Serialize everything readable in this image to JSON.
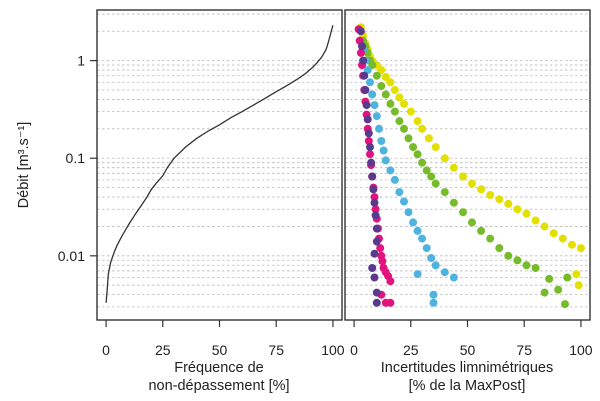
{
  "chart_data": [
    {
      "type": "line",
      "panel": "left",
      "ylabel": "Débit [m³.s⁻¹]",
      "xlabel": [
        "Fréquence de",
        "non-dépassement [%]"
      ],
      "x_ticks": [
        0,
        25,
        50,
        75,
        100
      ],
      "y_ticks": [
        0.01,
        0.1,
        1
      ],
      "y_tick_labels": [
        "0.01",
        "0.1",
        "1"
      ],
      "xlim": [
        -4,
        104
      ],
      "ylim": [
        0.0022,
        3.3
      ],
      "y_scale": "log",
      "grid": "horizontal dotted at 1-9 × each decade",
      "line_color": "#333333",
      "series": [
        {
          "x": [
            0,
            0.5,
            1,
            2,
            3,
            4,
            5,
            7,
            10,
            13,
            16,
            18,
            20,
            22,
            25,
            27,
            30,
            35,
            40,
            45,
            50,
            55,
            60,
            65,
            70,
            75,
            80,
            85,
            88,
            91,
            93,
            95,
            97,
            98,
            99,
            100
          ],
          "y": [
            0.0033,
            0.0045,
            0.0065,
            0.0085,
            0.01,
            0.0115,
            0.013,
            0.016,
            0.021,
            0.027,
            0.034,
            0.04,
            0.048,
            0.055,
            0.066,
            0.08,
            0.1,
            0.13,
            0.16,
            0.19,
            0.22,
            0.26,
            0.3,
            0.35,
            0.41,
            0.48,
            0.56,
            0.66,
            0.74,
            0.85,
            0.95,
            1.08,
            1.3,
            1.55,
            1.9,
            2.3
          ]
        }
      ]
    },
    {
      "type": "scatter",
      "panel": "right",
      "xlabel": [
        "Incertitudes limnimétriques",
        "[% de la MaxPost]"
      ],
      "x_ticks": [
        0,
        25,
        50,
        75,
        100
      ],
      "xlim": [
        -4,
        104
      ],
      "ylim": [
        0.0022,
        3.3
      ],
      "y_scale": "log",
      "series": [
        {
          "color": "#e3e000",
          "points": [
            [
              3,
              2.2
            ],
            [
              4,
              1.8
            ],
            [
              5,
              1.5
            ],
            [
              6,
              1.3
            ],
            [
              7,
              1.1
            ],
            [
              8,
              1.0
            ],
            [
              10,
              0.9
            ],
            [
              12,
              0.8
            ],
            [
              14,
              0.68
            ],
            [
              16,
              0.6
            ],
            [
              18,
              0.5
            ],
            [
              20,
              0.42
            ],
            [
              22,
              0.36
            ],
            [
              25,
              0.3
            ],
            [
              28,
              0.24
            ],
            [
              30,
              0.2
            ],
            [
              33,
              0.16
            ],
            [
              36,
              0.13
            ],
            [
              40,
              0.1
            ],
            [
              44,
              0.08
            ],
            [
              48,
              0.065
            ],
            [
              52,
              0.055
            ],
            [
              56,
              0.048
            ],
            [
              60,
              0.042
            ],
            [
              64,
              0.038
            ],
            [
              68,
              0.034
            ],
            [
              72,
              0.03
            ],
            [
              76,
              0.027
            ],
            [
              80,
              0.023
            ],
            [
              84,
              0.02
            ],
            [
              88,
              0.017
            ],
            [
              92,
              0.015
            ],
            [
              96,
              0.013
            ],
            [
              100,
              0.012
            ],
            [
              98,
              0.0065
            ],
            [
              99,
              0.005
            ]
          ]
        },
        {
          "color": "#76bb2a",
          "points": [
            [
              4,
              1.6
            ],
            [
              5,
              1.4
            ],
            [
              6,
              1.2
            ],
            [
              7,
              1.0
            ],
            [
              8,
              0.9
            ],
            [
              10,
              0.7
            ],
            [
              12,
              0.55
            ],
            [
              14,
              0.45
            ],
            [
              16,
              0.36
            ],
            [
              18,
              0.3
            ],
            [
              20,
              0.24
            ],
            [
              22,
              0.2
            ],
            [
              24,
              0.16
            ],
            [
              26,
              0.13
            ],
            [
              28,
              0.11
            ],
            [
              30,
              0.09
            ],
            [
              32,
              0.075
            ],
            [
              34,
              0.065
            ],
            [
              36,
              0.055
            ],
            [
              40,
              0.045
            ],
            [
              44,
              0.035
            ],
            [
              48,
              0.028
            ],
            [
              52,
              0.022
            ],
            [
              56,
              0.018
            ],
            [
              60,
              0.015
            ],
            [
              64,
              0.012
            ],
            [
              68,
              0.01
            ],
            [
              72,
              0.009
            ],
            [
              76,
              0.008
            ],
            [
              80,
              0.0075
            ],
            [
              84,
              0.0042
            ],
            [
              90,
              0.0045
            ],
            [
              93,
              0.0032
            ],
            [
              86,
              0.0058
            ],
            [
              94,
              0.006
            ]
          ]
        },
        {
          "color": "#4fb3e0",
          "points": [
            [
              4,
              1.3
            ],
            [
              5,
              1.0
            ],
            [
              6,
              0.8
            ],
            [
              7,
              0.6
            ],
            [
              8,
              0.45
            ],
            [
              9,
              0.35
            ],
            [
              10,
              0.27
            ],
            [
              11,
              0.2
            ],
            [
              12,
              0.15
            ],
            [
              13,
              0.12
            ],
            [
              14,
              0.095
            ],
            [
              16,
              0.075
            ],
            [
              18,
              0.06
            ],
            [
              20,
              0.045
            ],
            [
              22,
              0.036
            ],
            [
              24,
              0.028
            ],
            [
              26,
              0.022
            ],
            [
              28,
              0.018
            ],
            [
              30,
              0.015
            ],
            [
              32,
              0.012
            ],
            [
              34,
              0.0095
            ],
            [
              36,
              0.008
            ],
            [
              40,
              0.0068
            ],
            [
              44,
              0.006
            ],
            [
              35,
              0.004
            ],
            [
              35,
              0.0033
            ],
            [
              28,
              0.0065
            ]
          ]
        },
        {
          "color": "#e2127e",
          "points": [
            [
              2,
              2.1
            ],
            [
              2.5,
              1.6
            ],
            [
              3,
              1.2
            ],
            [
              3.5,
              0.9
            ],
            [
              4,
              0.7
            ],
            [
              4.5,
              0.5
            ],
            [
              5,
              0.38
            ],
            [
              5.5,
              0.28
            ],
            [
              6,
              0.2
            ],
            [
              6.5,
              0.15
            ],
            [
              7,
              0.11
            ],
            [
              7.5,
              0.085
            ],
            [
              8,
              0.065
            ],
            [
              8.5,
              0.05
            ],
            [
              9,
              0.04
            ],
            [
              9.5,
              0.03
            ],
            [
              10,
              0.024
            ],
            [
              10.5,
              0.019
            ],
            [
              11,
              0.015
            ],
            [
              11.5,
              0.012
            ],
            [
              12,
              0.01
            ],
            [
              12.5,
              0.0088
            ],
            [
              13,
              0.0075
            ],
            [
              14,
              0.0068
            ],
            [
              15,
              0.0062
            ],
            [
              16,
              0.0055
            ],
            [
              12,
              0.004
            ],
            [
              14,
              0.0033
            ],
            [
              16,
              0.0033
            ]
          ]
        },
        {
          "color": "#5a3a8c",
          "points": [
            [
              3,
              2.0
            ],
            [
              3.5,
              1.4
            ],
            [
              4,
              1.0
            ],
            [
              4.5,
              0.7
            ],
            [
              5,
              0.5
            ],
            [
              5.5,
              0.35
            ],
            [
              6,
              0.25
            ],
            [
              6.5,
              0.18
            ],
            [
              7,
              0.13
            ],
            [
              7.5,
              0.09
            ],
            [
              8,
              0.065
            ],
            [
              8.5,
              0.048
            ],
            [
              9,
              0.035
            ],
            [
              9.5,
              0.026
            ],
            [
              10,
              0.019
            ],
            [
              10,
              0.014
            ],
            [
              9,
              0.0105
            ],
            [
              8,
              0.0075
            ],
            [
              9,
              0.006
            ],
            [
              10,
              0.0042
            ],
            [
              10,
              0.0033
            ]
          ]
        }
      ]
    }
  ]
}
